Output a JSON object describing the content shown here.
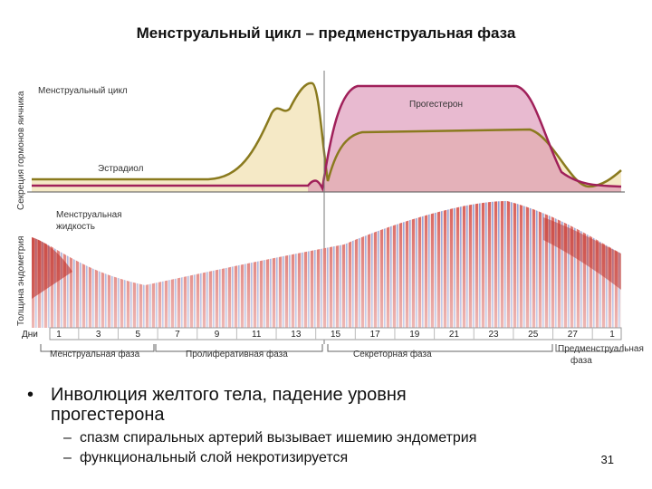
{
  "header": {
    "title": "Менструальный цикл – предменструальная фаза"
  },
  "figure": {
    "hormone_axis_label": "Секреция гормонов яичника",
    "thickness_axis_label": "Толщина эндометрия",
    "cycle_label": "Менструальный цикл",
    "estradiol_label": "Эстрадиол",
    "progesterone_label": "Прогестерон",
    "fluid_label": [
      "Менструальная",
      "жидкость"
    ],
    "days_label": "Дни",
    "days": [
      "1",
      "3",
      "5",
      "7",
      "9",
      "11",
      "13",
      "15",
      "17",
      "19",
      "21",
      "23",
      "25",
      "27",
      "1"
    ],
    "phases": [
      [
        "Менструальная фаза"
      ],
      [
        "Пролиферативная фаза"
      ],
      [
        "Секреторная фаза"
      ],
      [
        "Предменструальная",
        "фаза"
      ]
    ]
  },
  "bullets": [
    {
      "text": [
        "Инволюция желтого тела, падение уровня",
        "прогестерона"
      ],
      "subs": [
        "спазм спиральных артерий вызывает ишемию эндометрия",
        "функциональный слой некротизируется"
      ]
    }
  ],
  "page_number": "31"
}
